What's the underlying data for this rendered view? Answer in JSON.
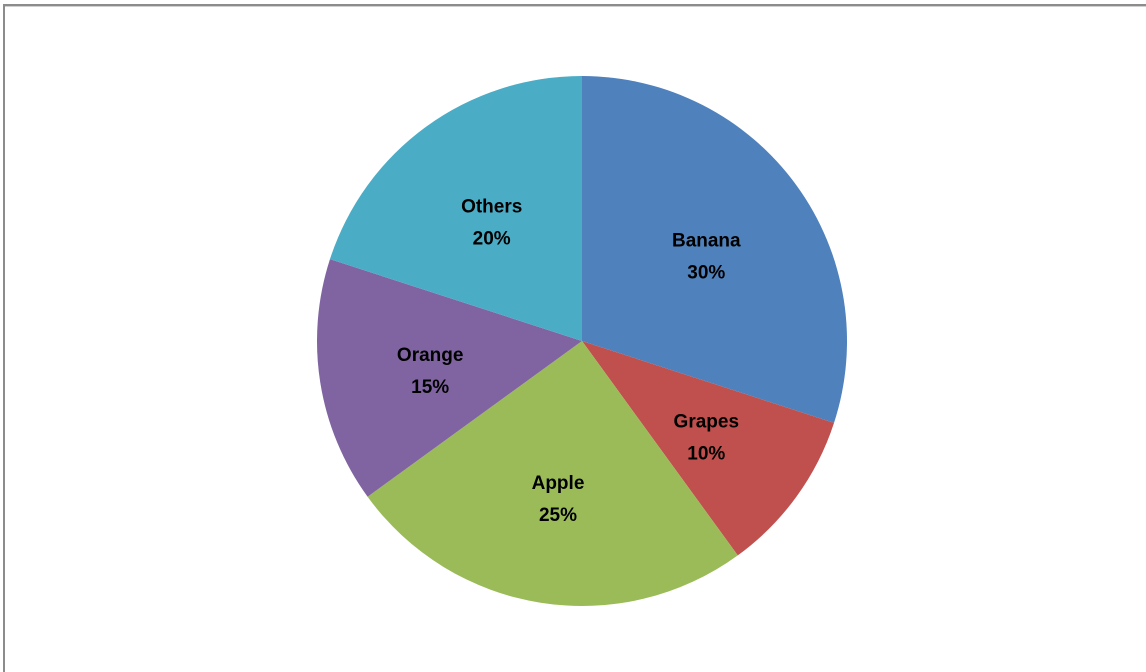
{
  "chart_data": {
    "type": "pie",
    "title": "",
    "start_angle_deg": 0,
    "direction": "clockwise",
    "legend": "none",
    "slices": [
      {
        "label": "Banana",
        "value": 30,
        "value_label": "30%",
        "color": "#4F81BD"
      },
      {
        "label": "Grapes",
        "value": 10,
        "value_label": "10%",
        "color": "#C0504D"
      },
      {
        "label": "Apple",
        "value": 25,
        "value_label": "25%",
        "color": "#9BBB59"
      },
      {
        "label": "Orange",
        "value": 15,
        "value_label": "15%",
        "color": "#8064A2"
      },
      {
        "label": "Others",
        "value": 20,
        "value_label": "20%",
        "color": "#4BACC6"
      }
    ]
  }
}
